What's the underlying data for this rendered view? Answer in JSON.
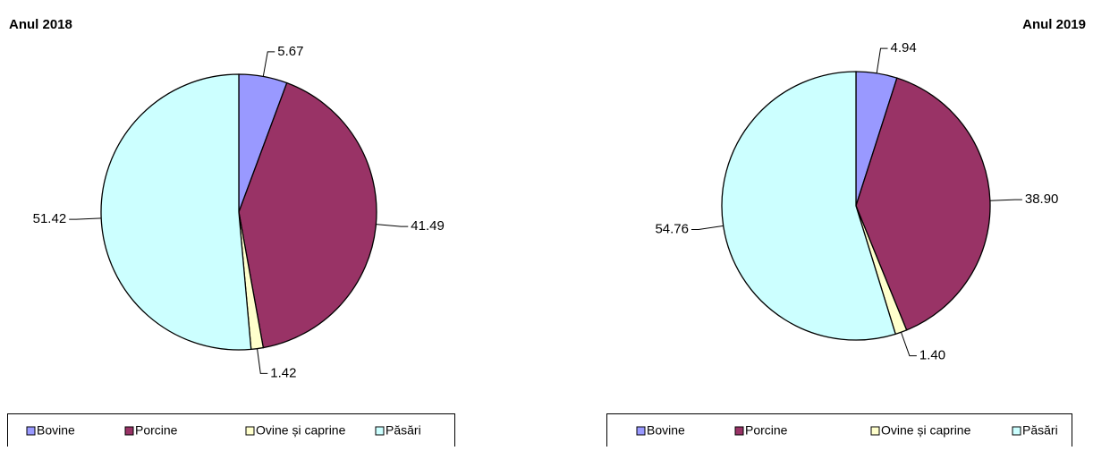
{
  "chart_data": [
    {
      "type": "pie",
      "title": "Anul 2018",
      "categories": [
        "Bovine",
        "Porcine",
        "Ovine și caprine",
        "Păsări"
      ],
      "values": [
        5.67,
        41.49,
        1.42,
        51.42
      ],
      "colors": [
        "#9999ff",
        "#993366",
        "#ffffcc",
        "#ccffff"
      ]
    },
    {
      "type": "pie",
      "title": "Anul 2019",
      "categories": [
        "Bovine",
        "Porcine",
        "Ovine și caprine",
        "Păsări"
      ],
      "values": [
        4.94,
        38.9,
        1.4,
        54.76
      ],
      "value_labels": [
        "4.94",
        "38.90",
        "1.40",
        "54.76"
      ],
      "colors": [
        "#9999ff",
        "#993366",
        "#ffffcc",
        "#ccffff"
      ]
    }
  ]
}
